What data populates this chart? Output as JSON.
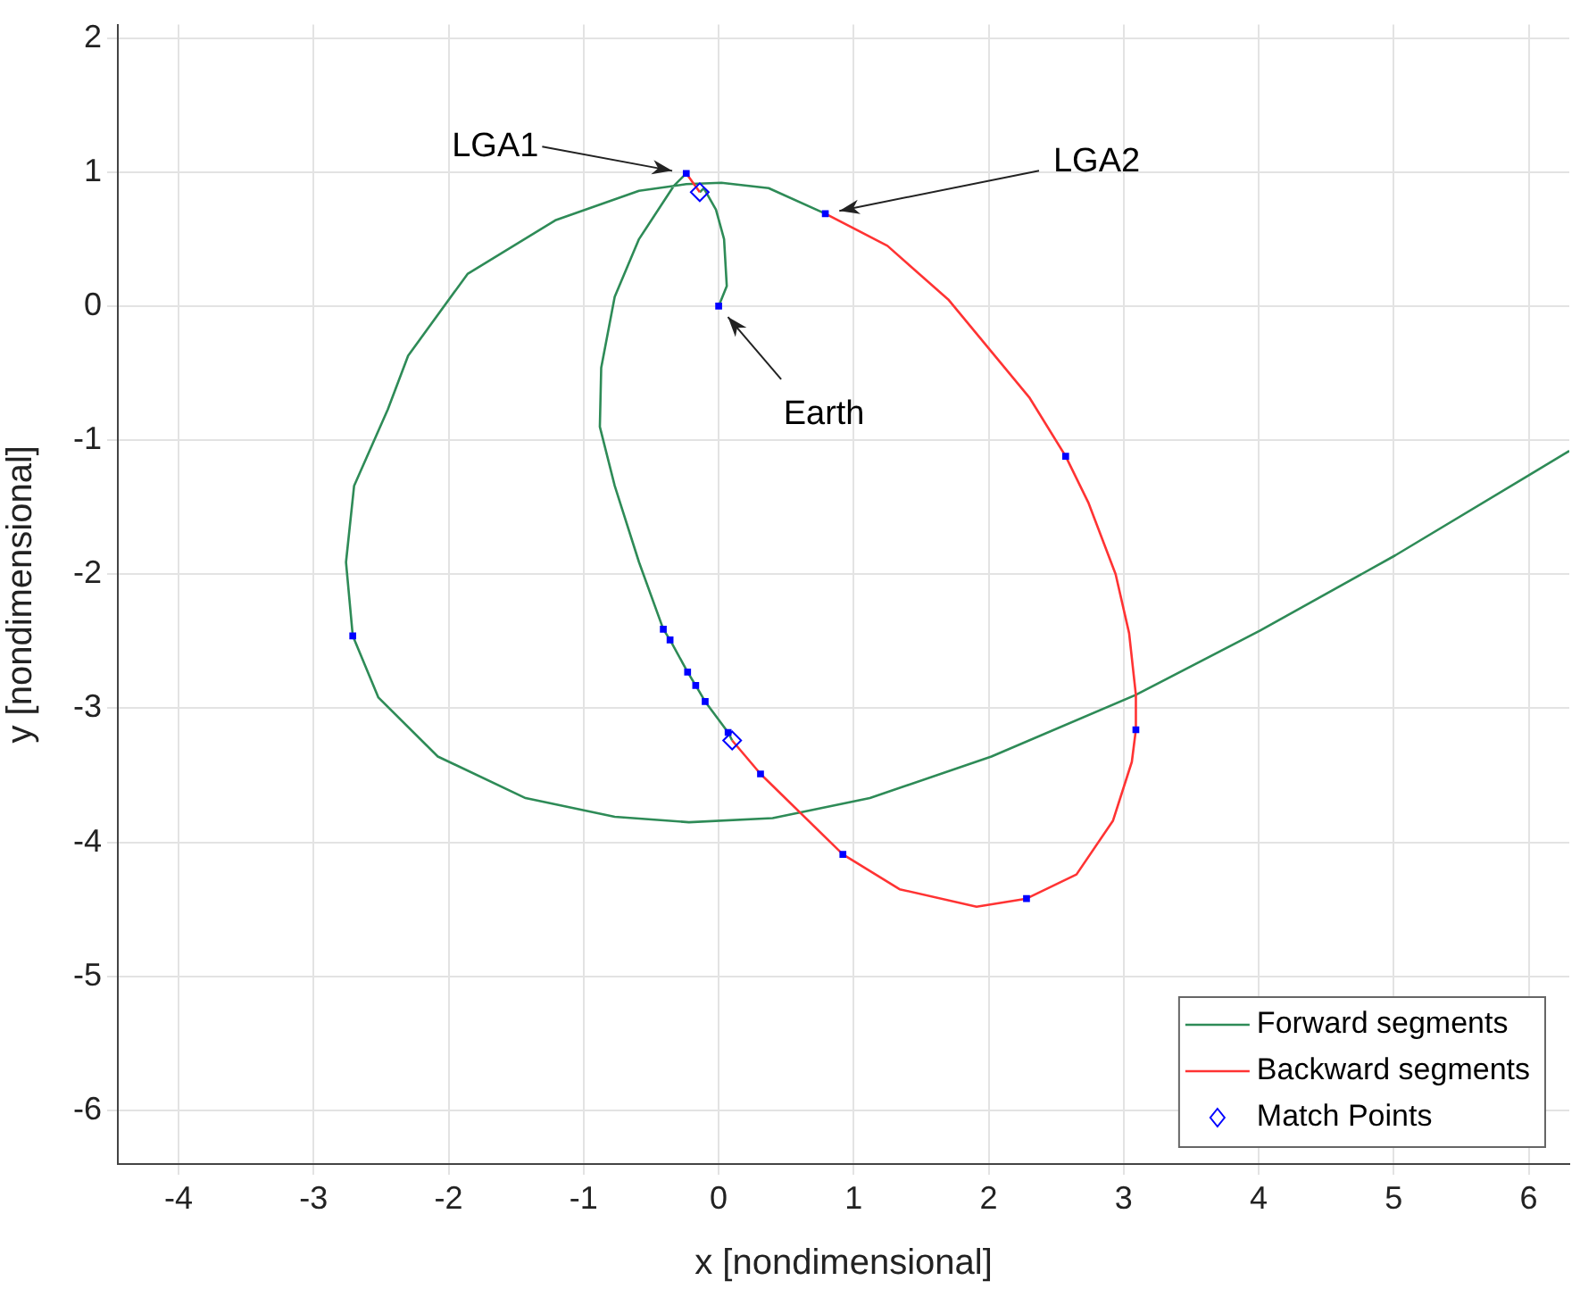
{
  "chart_data": {
    "type": "line",
    "xlabel": "x [nondimensional]",
    "ylabel": "y [nondimensional]",
    "xlim": [
      -4.45,
      6.3
    ],
    "ylim": [
      -6.4,
      2.1
    ],
    "xticks": [
      -4,
      -3,
      -2,
      -1,
      0,
      1,
      2,
      3,
      4,
      5,
      6
    ],
    "yticks": [
      -6,
      -5,
      -4,
      -3,
      -2,
      -1,
      0,
      1,
      2
    ],
    "grid": true,
    "legend": "bottom right",
    "series": [
      {
        "name": "Forward segments",
        "color": "#2e8b57",
        "marker": "none",
        "x": [
          0,
          0.06,
          0.04,
          -0.02,
          -0.11,
          -0.14,
          null,
          -0.24,
          -0.33,
          -0.59,
          -0.77,
          -0.87,
          -0.88,
          -0.77,
          -0.59,
          -0.41,
          -0.36,
          -0.23,
          -0.17,
          -0.1,
          0.07,
          0.1,
          null,
          0.79,
          0.37,
          0.02,
          -0.24,
          -0.59,
          -1.21,
          -1.86,
          -2.3,
          -2.45,
          -2.7,
          -2.76,
          -2.71,
          -2.52,
          -2.08,
          -1.43,
          -0.77,
          -0.22,
          0.4,
          1.12,
          2.02,
          3.09,
          4.01,
          5.01,
          6.02,
          6.3
        ],
        "values": [
          0,
          0.15,
          0.5,
          0.72,
          0.88,
          0.85,
          null,
          0.99,
          0.9,
          0.5,
          0.07,
          -0.46,
          -0.9,
          -1.34,
          -1.91,
          -2.41,
          -2.49,
          -2.73,
          -2.83,
          -2.95,
          -3.18,
          -3.24,
          null,
          0.69,
          0.88,
          0.92,
          0.91,
          0.86,
          0.64,
          0.24,
          -0.37,
          -0.77,
          -1.34,
          -1.91,
          -2.46,
          -2.92,
          -3.36,
          -3.67,
          -3.81,
          -3.85,
          -3.82,
          -3.67,
          -3.36,
          -2.9,
          -2.42,
          -1.86,
          -1.25,
          -1.08
        ]
      },
      {
        "name": "Backward segments",
        "color": "#ff3333",
        "marker": "none",
        "x": [
          -0.24,
          -0.14,
          null,
          0.1,
          0.31,
          0.92,
          1.34,
          1.91,
          2.28,
          2.65,
          2.92,
          3.06,
          3.09,
          3.09,
          3.04,
          2.94,
          2.74,
          2.57,
          2.3,
          1.7,
          1.25,
          0.79
        ],
        "values": [
          0.99,
          0.85,
          null,
          -3.24,
          -3.49,
          -4.09,
          -4.35,
          -4.48,
          -4.42,
          -4.24,
          -3.84,
          -3.4,
          -3.16,
          -2.9,
          -2.44,
          -2.0,
          -1.47,
          -1.12,
          -0.68,
          0.05,
          0.45,
          0.69
        ]
      },
      {
        "name": "Match Points",
        "type": "scatter",
        "color": "#0000ff",
        "marker": "diamond",
        "x": [
          -0.14,
          0.1
        ],
        "values": [
          0.85,
          -3.24
        ]
      },
      {
        "type": "scatter",
        "color": "#0000ff",
        "marker": "square",
        "x": [
          0,
          -0.24,
          0.79,
          -0.41,
          -0.36,
          -0.23,
          -0.17,
          -0.1,
          0.07,
          0.31,
          0.92,
          2.28,
          3.09,
          2.57,
          -2.71
        ],
        "values": [
          0,
          0.99,
          0.69,
          -2.41,
          -2.49,
          -2.73,
          -2.83,
          -2.95,
          -3.18,
          -3.49,
          -4.09,
          -4.42,
          -3.16,
          -1.12,
          -2.46
        ]
      }
    ],
    "annotations": [
      {
        "text": "LGA1",
        "x": -0.24,
        "y": 0.99
      },
      {
        "text": "LGA2",
        "x": 0.79,
        "y": 0.69
      },
      {
        "text": "Earth",
        "x": 0,
        "y": 0
      }
    ]
  }
}
